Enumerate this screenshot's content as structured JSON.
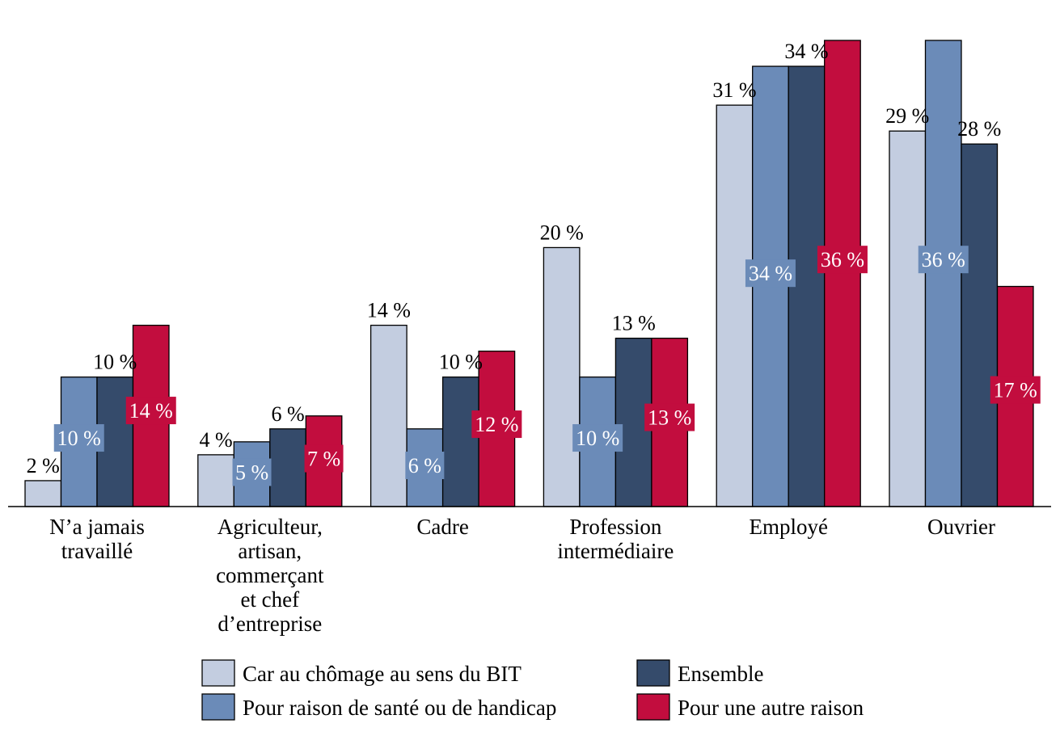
{
  "chart_data": {
    "type": "bar",
    "categories": [
      [
        "N’a jamais",
        "travaillé"
      ],
      [
        "Agriculteur,",
        "artisan,",
        "commerçant",
        "et chef",
        "d’entreprise"
      ],
      [
        "Cadre"
      ],
      [
        "Profession",
        "intermédiaire"
      ],
      [
        "Employé"
      ],
      [
        "Ouvrier"
      ]
    ],
    "ylim": [
      0,
      36
    ],
    "grid": false,
    "legend_position": "bottom",
    "series": [
      {
        "name": "Car au chômage au sens du BIT",
        "color": "#c3cde0",
        "values": [
          2,
          4,
          14,
          20,
          31,
          29
        ]
      },
      {
        "name": "Pour raison de santé ou de handicap",
        "color": "#6b8bb8",
        "values": [
          10,
          5,
          6,
          10,
          34,
          36
        ]
      },
      {
        "name": "Ensemble",
        "color": "#354b6b",
        "values": [
          10,
          6,
          10,
          13,
          34,
          28
        ]
      },
      {
        "name": "Pour une autre raison",
        "color": "#c20d3e",
        "values": [
          14,
          7,
          12,
          13,
          36,
          17
        ]
      }
    ],
    "data_labels": [
      {
        "series": 0,
        "category": 0,
        "text": "2 %",
        "style": "top"
      },
      {
        "series": 1,
        "category": 0,
        "text": "10 %",
        "style": "inside"
      },
      {
        "series": 2,
        "category": 0,
        "text": "10 %",
        "style": "top"
      },
      {
        "series": 3,
        "category": 0,
        "text": "14 %",
        "style": "inside"
      },
      {
        "series": 0,
        "category": 1,
        "text": "4 %",
        "style": "top"
      },
      {
        "series": 1,
        "category": 1,
        "text": "5 %",
        "style": "inside"
      },
      {
        "series": 2,
        "category": 1,
        "text": "6 %",
        "style": "top"
      },
      {
        "series": 3,
        "category": 1,
        "text": "7 %",
        "style": "inside"
      },
      {
        "series": 0,
        "category": 2,
        "text": "14 %",
        "style": "top"
      },
      {
        "series": 1,
        "category": 2,
        "text": "6 %",
        "style": "inside"
      },
      {
        "series": 2,
        "category": 2,
        "text": "10 %",
        "style": "top"
      },
      {
        "series": 3,
        "category": 2,
        "text": "12 %",
        "style": "inside"
      },
      {
        "series": 0,
        "category": 3,
        "text": "20 %",
        "style": "top"
      },
      {
        "series": 1,
        "category": 3,
        "text": "10 %",
        "style": "inside"
      },
      {
        "series": 2,
        "category": 3,
        "text": "13 %",
        "style": "top"
      },
      {
        "series": 3,
        "category": 3,
        "text": "13 %",
        "style": "inside"
      },
      {
        "series": 0,
        "category": 4,
        "text": "31 %",
        "style": "top"
      },
      {
        "series": 1,
        "category": 4,
        "text": "34 %",
        "style": "inside"
      },
      {
        "series": 2,
        "category": 4,
        "text": "34 %",
        "style": "top"
      },
      {
        "series": 3,
        "category": 4,
        "text": "36 %",
        "style": "inside"
      },
      {
        "series": 0,
        "category": 5,
        "text": "29 %",
        "style": "top"
      },
      {
        "series": 1,
        "category": 5,
        "text": "36 %",
        "style": "inside"
      },
      {
        "series": 2,
        "category": 5,
        "text": "28 %",
        "style": "top"
      },
      {
        "series": 3,
        "category": 5,
        "text": "17 %",
        "style": "inside"
      }
    ]
  }
}
